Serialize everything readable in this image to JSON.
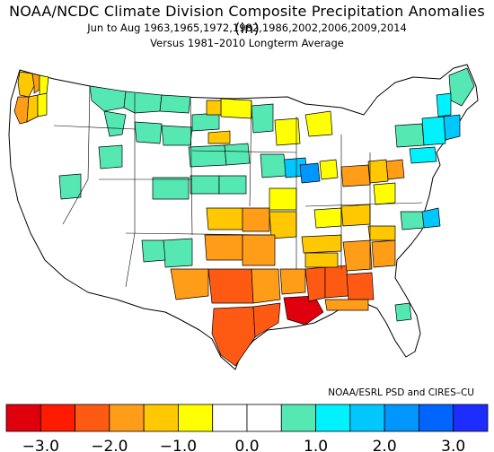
{
  "title": "NOAA/NCDC Climate Division Composite Precipitation Anomalies (in)",
  "period": "Jun to Aug  1963,1965,1972,1982,1986,2002,2006,2009,2014",
  "baseline": "Versus 1981–2010 Longterm Average",
  "credit": "NOAA/ESRL PSD and CIRES–CU",
  "colorbar": {
    "ticks": [
      "−3.0",
      "−2.0",
      "−1.0",
      "0.0",
      "1.0",
      "2.0",
      "3.0"
    ],
    "colors": [
      "#e0000d",
      "#ff1a00",
      "#ff5a14",
      "#ff9d19",
      "#ffc800",
      "#ffff00",
      "#ffffff",
      "#ffffff",
      "#55e8b3",
      "#00f2ff",
      "#00c8ff",
      "#0096ff",
      "#0064ff",
      "#1e2dff"
    ]
  },
  "colors": {
    "very_dry": "#ff1a00",
    "dry": "#ff5a14",
    "moderately_dry": "#ff9d19",
    "slightly_dry": "#ffc800",
    "near_dry": "#ffff00",
    "normal": "#ffffff",
    "slightly_wet": "#55e8b3",
    "wet": "#00f2ff",
    "very_wet": "#00c8ff",
    "wettest": "#0096ff"
  }
}
